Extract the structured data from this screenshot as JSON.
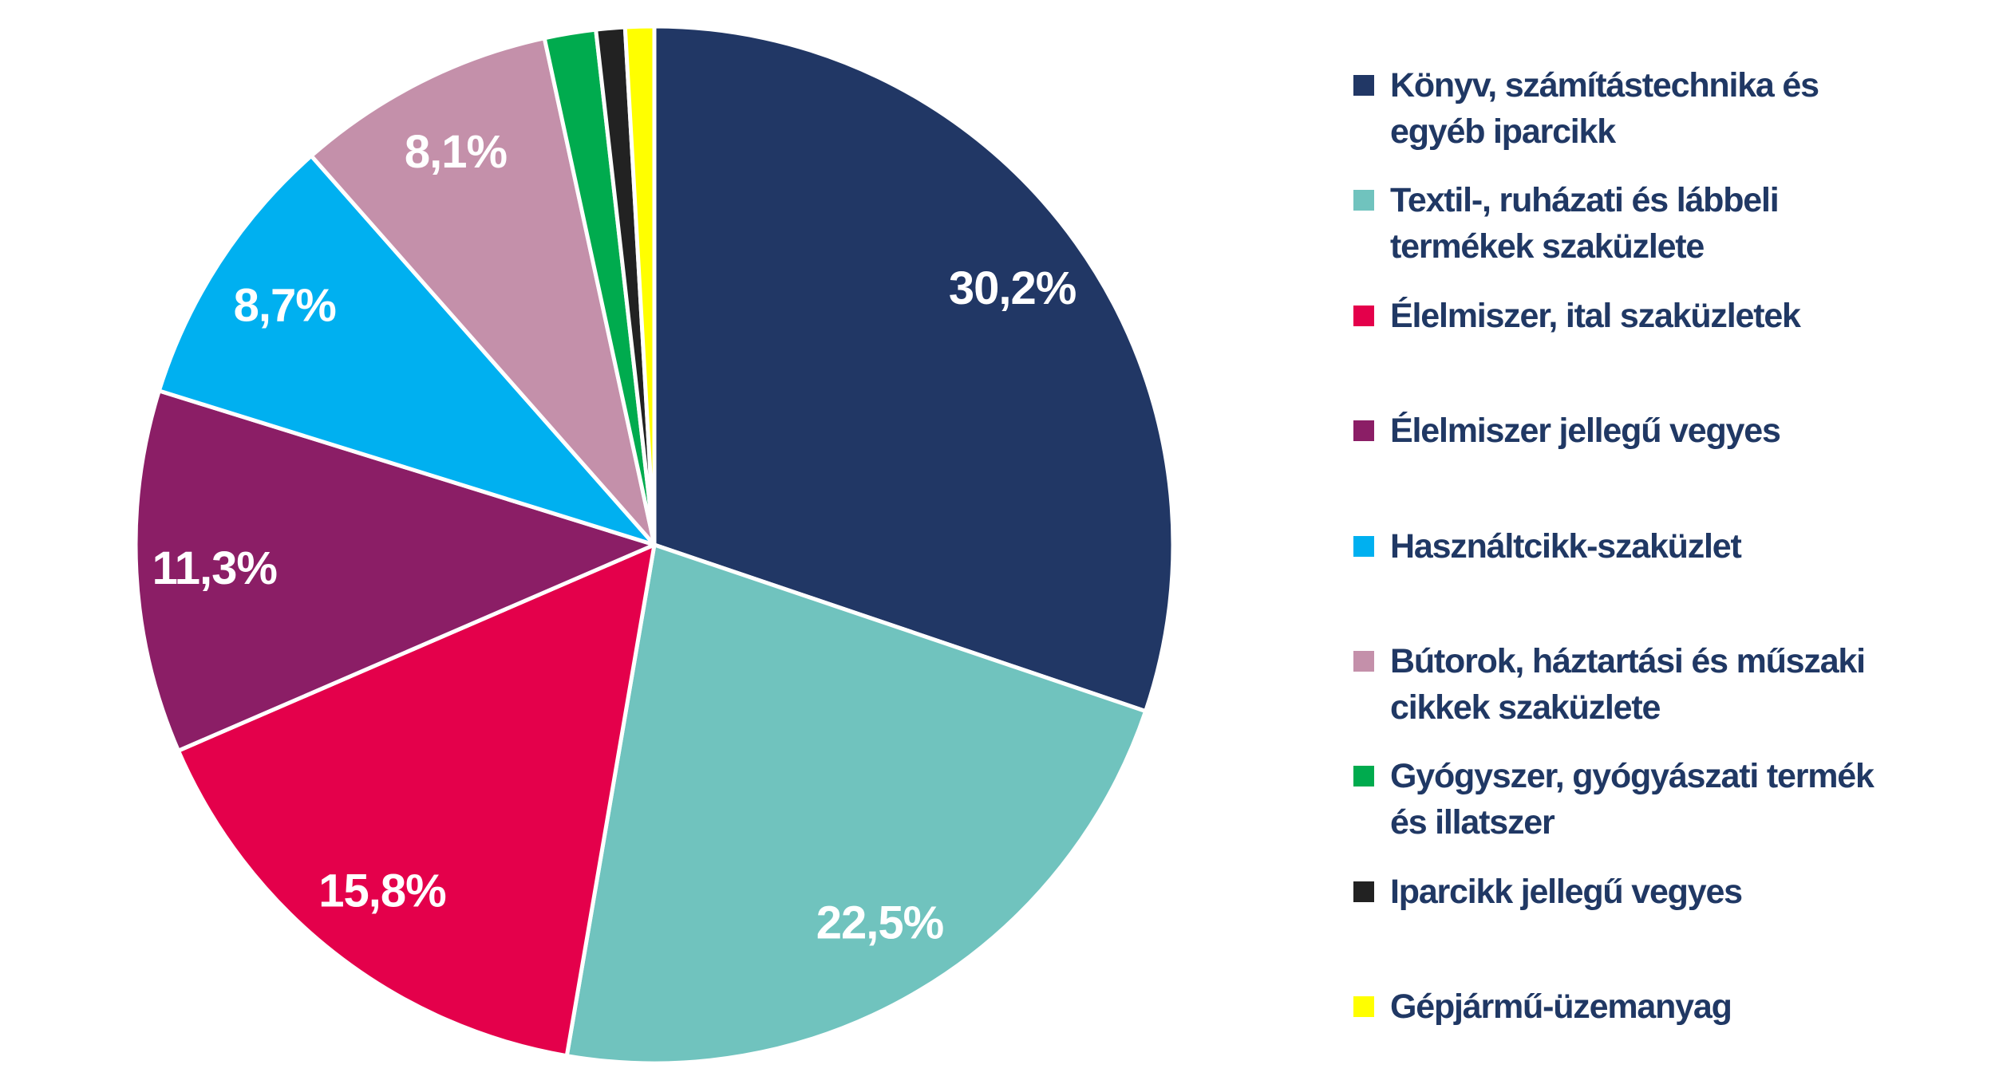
{
  "chart_data": {
    "type": "pie",
    "title": "",
    "start_angle": "top (12 o'clock), clockwise",
    "legend_position": "right",
    "slices": [
      {
        "name": "Könyv, számítástechnika és egyéb iparcikk",
        "legend_lines": [
          "Könyv, számítástechnika és",
          "egyéb iparcikk"
        ],
        "value": 30.2,
        "label": "30,2%",
        "color": "#213765"
      },
      {
        "name": "Textil-, ruházati és lábbeli termékek szaküzlete",
        "legend_lines": [
          "Textil-, ruházati és lábbeli",
          "termékek szaküzlete"
        ],
        "value": 22.5,
        "label": "22,5%",
        "color": "#70C3BE"
      },
      {
        "name": "Élelmiszer, ital szaküzletek",
        "legend_lines": [
          "Élelmiszer, ital szaküzletek"
        ],
        "value": 15.8,
        "label": "15,8%",
        "color": "#E4004B"
      },
      {
        "name": "Élelmiszer jellegű vegyes",
        "legend_lines": [
          "Élelmiszer jellegű vegyes"
        ],
        "value": 11.3,
        "label": "11,3%",
        "color": "#8B1E66"
      },
      {
        "name": "Használtcikk-szaküzlet",
        "legend_lines": [
          "Használtcikk-szaküzlet"
        ],
        "value": 8.7,
        "label": "8,7%",
        "color": "#00B0F0"
      },
      {
        "name": "Bútorok, háztartási és műszaki cikkek szaküzlete",
        "legend_lines": [
          "Bútorok, háztartási és műszaki",
          "cikkek szaküzlete"
        ],
        "value": 8.1,
        "label": "8,1%",
        "color": "#C490AA"
      },
      {
        "name": "Gyógyszer, gyógyászati termék és illatszer",
        "legend_lines": [
          "Gyógyszer, gyógyászati termék",
          "és illatszer"
        ],
        "value": 1.6,
        "label": "",
        "color": "#00AB4E"
      },
      {
        "name": "Iparcikk jellegű vegyes",
        "legend_lines": [
          "Iparcikk jellegű vegyes"
        ],
        "value": 0.9,
        "label": "",
        "color": "#222222"
      },
      {
        "name": "Gépjármű-üzemanyag",
        "legend_lines": [
          "Gépjármű-üzemanyag"
        ],
        "value": 0.9,
        "label": "",
        "color": "#FFFF00"
      }
    ]
  },
  "colors": {
    "legend_text": "#203864",
    "data_label_text": "#FFFFFF",
    "slice_border": "#FFFFFF"
  }
}
